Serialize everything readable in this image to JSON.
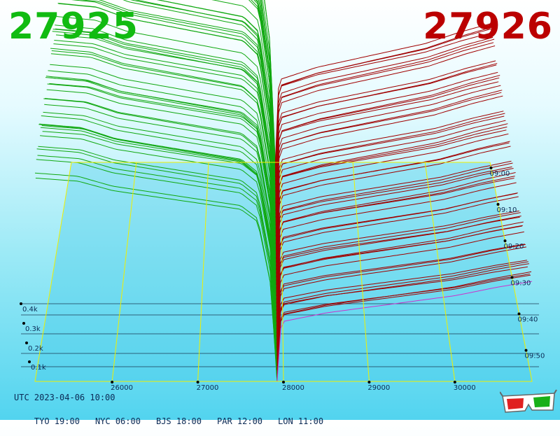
{
  "header": {
    "price_left": "27925",
    "price_right": "27926"
  },
  "footer": {
    "utc_label": "UTC 2023-04-06 10:00",
    "zones": [
      {
        "label": "TYO 19:00"
      },
      {
        "label": "NYC 06:00"
      },
      {
        "label": "BJS 18:00"
      },
      {
        "label": "PAR 12:00"
      },
      {
        "label": "LON 11:00"
      }
    ]
  },
  "colors": {
    "bid_lines": "#10a810",
    "ask_lines": "#a00000",
    "frame": "#f0f000",
    "bid_price": "#11bb11",
    "ask_price": "#bb0000",
    "latest_trace": "#cc33cc"
  },
  "icons": [
    "3d-glasses-icon"
  ],
  "chart_data": {
    "type": "area",
    "title": "",
    "x_axis": {
      "ticks": [
        "26000",
        "27000",
        "28000",
        "29000",
        "30000"
      ],
      "values": [
        26000,
        27000,
        28000,
        29000,
        30000
      ],
      "range": [
        25100,
        30900
      ]
    },
    "depth_axis": {
      "ticks": [
        "0.1k",
        "0.2k",
        "0.3k",
        "0.4k"
      ],
      "values": [
        100,
        200,
        300,
        400
      ]
    },
    "time_axis": {
      "ticks": [
        "09:00",
        "09:10",
        "09:20",
        "09:30",
        "09:40",
        "09:50"
      ]
    },
    "snapshots": 60,
    "mid_price_range": [
      27925,
      27926
    ],
    "bid_profile": [
      [
        25100,
        640
      ],
      [
        25600,
        630
      ],
      [
        26000,
        600
      ],
      [
        26500,
        580
      ],
      [
        27000,
        560
      ],
      [
        27500,
        540
      ],
      [
        27700,
        500
      ],
      [
        27850,
        300
      ],
      [
        27925,
        0
      ]
    ],
    "ask_profile": [
      [
        27926,
        0
      ],
      [
        27960,
        180
      ],
      [
        28000,
        210
      ],
      [
        28500,
        240
      ],
      [
        29000,
        260
      ],
      [
        29500,
        280
      ],
      [
        30000,
        300
      ],
      [
        30500,
        330
      ],
      [
        30900,
        350
      ]
    ],
    "grid": true
  }
}
